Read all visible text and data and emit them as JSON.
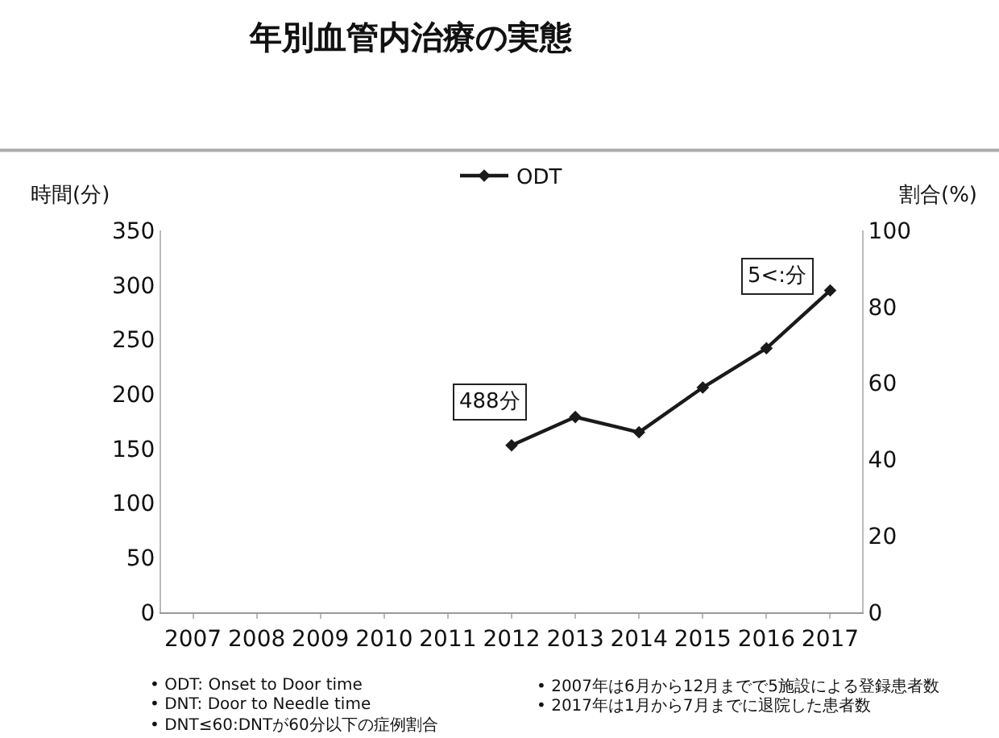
{
  "chart_data": {
    "type": "line",
    "title": "年別血管内治療の実態",
    "ylabel": "時間(分)",
    "y2label": "割合(%)",
    "categories": [
      "2007",
      "2008",
      "2009",
      "2010",
      "2011",
      "2012",
      "2013",
      "2014",
      "2015",
      "2016",
      "2017"
    ],
    "series": [
      {
        "name": "ODT",
        "color": "#1a1a1a",
        "values": [
          null,
          null,
          null,
          null,
          null,
          153,
          179,
          165,
          206,
          242,
          295
        ]
      }
    ],
    "ylim": [
      0,
      350
    ],
    "yticks": [
      0,
      50,
      100,
      150,
      200,
      250,
      300,
      350
    ],
    "y2lim": [
      0,
      100
    ],
    "y2ticks": [
      0,
      20,
      40,
      60,
      80,
      100
    ],
    "annotations": [
      "488分",
      "5<:分",
      "• ODT: Onset to Door time",
      "• DNT: Door to Needle time",
      "• DNT≤60:DNTが60分以下の症例割合",
      "• 2007年は6月から12月までで5施設による登録患者数",
      "• 2017年は1月から7月までに退院した患者数"
    ],
    "legend": "top",
    "marker": "diamond",
    "line_style": "solid",
    "grid": false
  }
}
